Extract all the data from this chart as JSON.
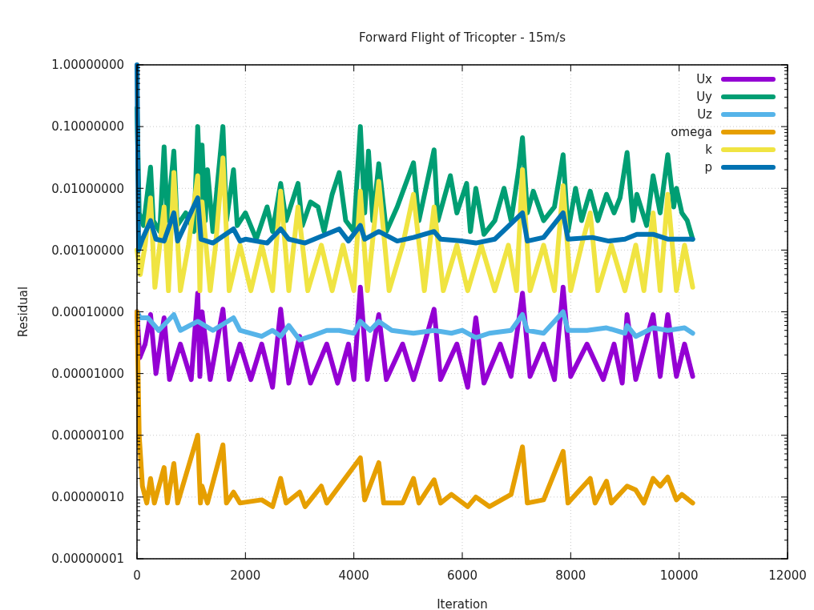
{
  "chart_data": {
    "type": "line",
    "title": "Forward Flight of Tricopter - 15m/s",
    "xlabel": "Iteration",
    "ylabel": "Residual",
    "log": "y",
    "grid": true,
    "legend": "top right",
    "marker": "none",
    "line_style": "solid",
    "xlim": [
      0,
      12000
    ],
    "xticks": [
      0,
      2000,
      4000,
      6000,
      8000,
      10000,
      12000
    ],
    "ylim": [
      1e-08,
      1
    ],
    "yticks": [
      {
        "value": 1,
        "label": "1.00000000"
      },
      {
        "value": 0.1,
        "label": "0.10000000"
      },
      {
        "value": 0.01,
        "label": "0.01000000"
      },
      {
        "value": 0.001,
        "label": "0.00100000"
      },
      {
        "value": 0.0001,
        "label": "0.00010000"
      },
      {
        "value": 1e-05,
        "label": "0.00001000"
      },
      {
        "value": 1e-06,
        "label": "0.00000100"
      },
      {
        "value": 1e-07,
        "label": "0.00000010"
      },
      {
        "value": 1e-08,
        "label": "0.00000001"
      }
    ],
    "series": [
      {
        "name": "Ux",
        "color": "#9400d3",
        "x": [
          0,
          50,
          150,
          250,
          350,
          500,
          600,
          800,
          1000,
          1120,
          1160,
          1200,
          1350,
          1585,
          1700,
          1900,
          2100,
          2300,
          2500,
          2650,
          2800,
          3000,
          3200,
          3500,
          3700,
          3900,
          4000,
          4120,
          4250,
          4460,
          4600,
          4900,
          5100,
          5300,
          5480,
          5600,
          5900,
          6100,
          6250,
          6400,
          6700,
          6900,
          7110,
          7250,
          7500,
          7700,
          7860,
          8000,
          8300,
          8600,
          8800,
          8950,
          9040,
          9200,
          9520,
          9650,
          9790,
          9950,
          10100,
          10250
        ],
        "values": [
          0.0001,
          1.8e-05,
          3e-05,
          9e-05,
          1e-05,
          8e-05,
          8e-06,
          3e-05,
          8e-06,
          0.0002,
          9e-06,
          0.0001,
          8e-06,
          0.00011,
          8e-06,
          3e-05,
          8e-06,
          3e-05,
          6e-06,
          0.00011,
          7e-06,
          4e-05,
          7e-06,
          3e-05,
          7e-06,
          3e-05,
          8e-06,
          0.00025,
          8e-06,
          9e-05,
          8e-06,
          3e-05,
          8e-06,
          3e-05,
          0.00011,
          8e-06,
          3e-05,
          6e-06,
          8e-05,
          7e-06,
          3e-05,
          9e-06,
          0.0002,
          9e-06,
          3e-05,
          8e-06,
          0.00025,
          9e-06,
          3e-05,
          8e-06,
          3e-05,
          7e-06,
          9e-05,
          8e-06,
          9e-05,
          9e-06,
          9e-05,
          9e-06,
          3e-05,
          9e-06
        ]
      },
      {
        "name": "Uy",
        "color": "#009e73",
        "x": [
          0,
          40,
          120,
          250,
          300,
          420,
          500,
          560,
          680,
          740,
          900,
          1050,
          1120,
          1180,
          1200,
          1260,
          1300,
          1400,
          1585,
          1650,
          1780,
          1850,
          2000,
          2200,
          2400,
          2500,
          2650,
          2750,
          2970,
          3050,
          3200,
          3340,
          3450,
          3600,
          3730,
          3850,
          4000,
          4120,
          4200,
          4270,
          4350,
          4460,
          4600,
          4800,
          5100,
          5200,
          5480,
          5550,
          5780,
          5900,
          6080,
          6150,
          6250,
          6400,
          6600,
          6770,
          6900,
          7040,
          7110,
          7200,
          7310,
          7500,
          7700,
          7860,
          7950,
          8090,
          8200,
          8360,
          8500,
          8660,
          8800,
          8910,
          9040,
          9150,
          9220,
          9400,
          9520,
          9650,
          9790,
          9900,
          9950,
          10050,
          10150,
          10250
        ],
        "values": [
          0.2,
          0.004,
          0.0025,
          0.022,
          0.003,
          0.002,
          0.047,
          0.003,
          0.04,
          0.0025,
          0.004,
          0.002,
          0.1,
          0.004,
          0.05,
          0.003,
          0.02,
          0.002,
          0.1,
          0.003,
          0.02,
          0.0025,
          0.004,
          0.0015,
          0.005,
          0.002,
          0.012,
          0.003,
          0.012,
          0.0025,
          0.006,
          0.005,
          0.002,
          0.008,
          0.018,
          0.003,
          0.002,
          0.1,
          0.004,
          0.04,
          0.003,
          0.025,
          0.002,
          0.005,
          0.026,
          0.003,
          0.042,
          0.003,
          0.016,
          0.004,
          0.012,
          0.002,
          0.01,
          0.0018,
          0.003,
          0.01,
          0.003,
          0.02,
          0.066,
          0.004,
          0.009,
          0.003,
          0.005,
          0.035,
          0.002,
          0.01,
          0.003,
          0.009,
          0.003,
          0.008,
          0.004,
          0.007,
          0.038,
          0.003,
          0.008,
          0.0025,
          0.016,
          0.004,
          0.035,
          0.005,
          0.01,
          0.004,
          0.003,
          0.0015
        ]
      },
      {
        "name": "Uz",
        "color": "#56b4e9",
        "x": [
          0,
          60,
          200,
          400,
          680,
          800,
          1120,
          1400,
          1780,
          1900,
          2300,
          2500,
          2650,
          2800,
          3000,
          3200,
          3500,
          3730,
          4000,
          4120,
          4300,
          4460,
          4700,
          5100,
          5480,
          5800,
          6000,
          6250,
          6500,
          6900,
          7110,
          7200,
          7500,
          7860,
          7950,
          8300,
          8660,
          9000,
          9040,
          9200,
          9520,
          9790,
          10100,
          10250
        ],
        "values": [
          0.0001,
          8e-05,
          8e-05,
          5e-05,
          9e-05,
          5e-05,
          7e-05,
          5e-05,
          8e-05,
          5e-05,
          4e-05,
          5e-05,
          4e-05,
          6e-05,
          3.5e-05,
          4e-05,
          5e-05,
          5e-05,
          4.5e-05,
          7e-05,
          5e-05,
          7e-05,
          5e-05,
          4.5e-05,
          5e-05,
          4.5e-05,
          5e-05,
          3.8e-05,
          4.5e-05,
          5e-05,
          9e-05,
          5e-05,
          4.5e-05,
          0.0001,
          5e-05,
          5e-05,
          5.5e-05,
          4.5e-05,
          6e-05,
          4e-05,
          5.5e-05,
          5e-05,
          5.5e-05,
          4.5e-05
        ]
      },
      {
        "name": "omega",
        "color": "#e69f00",
        "x": [
          0,
          40,
          100,
          180,
          250,
          320,
          500,
          560,
          680,
          750,
          1120,
          1170,
          1200,
          1300,
          1585,
          1650,
          1780,
          1900,
          2300,
          2500,
          2650,
          2750,
          3000,
          3100,
          3400,
          3500,
          4120,
          4200,
          4460,
          4550,
          4900,
          5100,
          5200,
          5480,
          5600,
          5800,
          6100,
          6250,
          6500,
          6900,
          7110,
          7200,
          7500,
          7860,
          7950,
          8360,
          8450,
          8660,
          8750,
          9040,
          9200,
          9350,
          9520,
          9650,
          9790,
          9950,
          10050,
          10250
        ],
        "values": [
          0.0001,
          1e-06,
          1.5e-07,
          8e-08,
          2e-07,
          8e-08,
          3e-07,
          8e-08,
          3.5e-07,
          8e-08,
          1e-06,
          8e-08,
          1.5e-07,
          8e-08,
          7e-07,
          8e-08,
          1.2e-07,
          8e-08,
          9e-08,
          7e-08,
          2e-07,
          8e-08,
          1.2e-07,
          7e-08,
          1.5e-07,
          8e-08,
          4.3e-07,
          9e-08,
          3.6e-07,
          8e-08,
          8e-08,
          2e-07,
          8e-08,
          1.9e-07,
          8e-08,
          1.1e-07,
          7e-08,
          1e-07,
          7e-08,
          1.1e-07,
          6.5e-07,
          8e-08,
          9e-08,
          5.5e-07,
          8e-08,
          2e-07,
          8e-08,
          1.8e-07,
          8e-08,
          1.5e-07,
          1.3e-07,
          8e-08,
          2e-07,
          1.5e-07,
          2.1e-07,
          9e-08,
          1.1e-07,
          8e-08
        ]
      },
      {
        "name": "k",
        "color": "#f0e442",
        "x": [
          0,
          60,
          150,
          250,
          330,
          420,
          500,
          580,
          680,
          800,
          950,
          1120,
          1160,
          1200,
          1350,
          1450,
          1585,
          1700,
          1900,
          2100,
          2300,
          2500,
          2650,
          2800,
          2970,
          3150,
          3400,
          3600,
          3800,
          4000,
          4120,
          4250,
          4460,
          4650,
          4900,
          5100,
          5300,
          5480,
          5650,
          5900,
          6100,
          6350,
          6600,
          6850,
          7000,
          7110,
          7250,
          7500,
          7700,
          7860,
          8000,
          8200,
          8360,
          8500,
          8750,
          9000,
          9200,
          9350,
          9520,
          9650,
          9790,
          9950,
          10100,
          10250
        ],
        "values": [
          0.001,
          0.0004,
          0.0012,
          0.007,
          0.00025,
          0.0012,
          0.005,
          0.00022,
          0.018,
          0.00022,
          0.0012,
          0.016,
          0.00022,
          0.006,
          0.00022,
          0.0012,
          0.031,
          0.00022,
          0.0012,
          0.00022,
          0.0012,
          0.00022,
          0.009,
          0.00022,
          0.005,
          0.00022,
          0.0012,
          0.00022,
          0.0012,
          0.00022,
          0.009,
          0.00022,
          0.013,
          0.00022,
          0.0012,
          0.008,
          0.00022,
          0.005,
          0.00022,
          0.0012,
          0.00022,
          0.0012,
          0.00022,
          0.0012,
          0.00022,
          0.02,
          0.00022,
          0.0012,
          0.00022,
          0.011,
          0.00022,
          0.0012,
          0.004,
          0.00022,
          0.0012,
          0.00022,
          0.0012,
          0.00022,
          0.004,
          0.00022,
          0.008,
          0.00022,
          0.0012,
          0.00025
        ]
      },
      {
        "name": "p",
        "color": "#0072b2",
        "x": [
          0,
          30,
          100,
          250,
          350,
          500,
          680,
          750,
          1120,
          1180,
          1400,
          1780,
          1900,
          2000,
          2400,
          2650,
          2800,
          3100,
          3730,
          3900,
          4120,
          4200,
          4460,
          4800,
          5100,
          5480,
          5600,
          6000,
          6250,
          6600,
          7110,
          7200,
          7500,
          7860,
          7950,
          8400,
          8700,
          9000,
          9220,
          9520,
          9800,
          10250
        ],
        "values": [
          1,
          0.001,
          0.0015,
          0.003,
          0.0015,
          0.0014,
          0.004,
          0.0014,
          0.007,
          0.0015,
          0.0013,
          0.0022,
          0.0014,
          0.0015,
          0.0013,
          0.0022,
          0.0015,
          0.0013,
          0.0022,
          0.0014,
          0.0025,
          0.0015,
          0.002,
          0.0014,
          0.0016,
          0.002,
          0.0015,
          0.0014,
          0.0013,
          0.0015,
          0.004,
          0.0014,
          0.0016,
          0.004,
          0.0015,
          0.0016,
          0.0014,
          0.0015,
          0.0018,
          0.0018,
          0.0015,
          0.0015
        ]
      }
    ]
  }
}
